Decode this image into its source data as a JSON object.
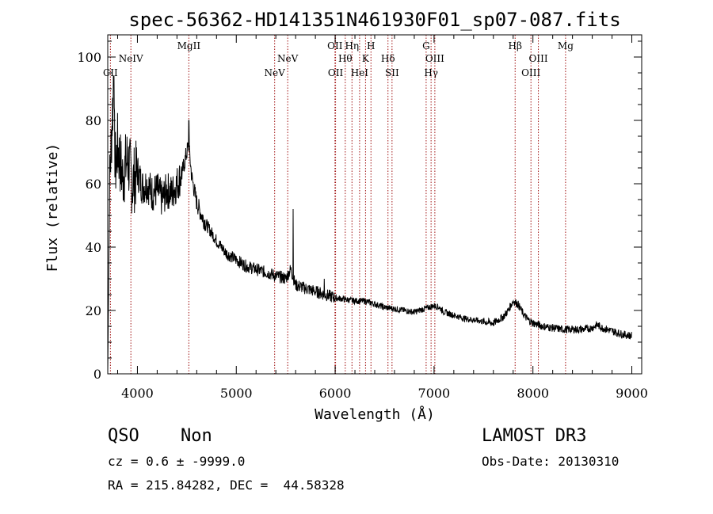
{
  "chart_data": {
    "type": "line",
    "title": "spec-56362-HD141351N461930F01_sp07-087.fits",
    "xlabel": "Wavelength (Å)",
    "ylabel": "Flux (relative)",
    "xlim": [
      3700,
      9100
    ],
    "ylim": [
      0,
      107
    ],
    "x_ticks": [
      4000,
      5000,
      6000,
      7000,
      8000,
      9000
    ],
    "y_ticks": [
      0,
      20,
      40,
      60,
      80,
      100
    ],
    "grid": false,
    "series": [
      {
        "name": "Flux",
        "x": [
          3700,
          3720,
          3750,
          3780,
          3800,
          3850,
          3900,
          3950,
          4000,
          4050,
          4100,
          4150,
          4200,
          4250,
          4300,
          4350,
          4400,
          4450,
          4500,
          4520,
          4550,
          4600,
          4650,
          4700,
          4800,
          4900,
          5000,
          5100,
          5200,
          5300,
          5400,
          5500,
          5550,
          5600,
          5700,
          5800,
          5900,
          6000,
          6100,
          6200,
          6300,
          6400,
          6500,
          6600,
          6700,
          6800,
          6900,
          7000,
          7050,
          7100,
          7200,
          7300,
          7400,
          7500,
          7600,
          7700,
          7750,
          7800,
          7850,
          7900,
          7950,
          8000,
          8100,
          8200,
          8300,
          8400,
          8500,
          8600,
          8650,
          8700,
          8800,
          8900,
          9000
        ],
        "y": [
          0,
          60,
          85,
          65,
          72,
          62,
          68,
          60,
          64,
          59,
          60,
          57,
          58,
          55,
          58,
          57,
          60,
          63,
          70,
          72,
          62,
          54,
          50,
          47,
          42,
          38,
          36,
          34,
          33,
          32,
          31,
          30,
          33,
          28,
          27,
          26,
          25,
          24,
          23.5,
          23,
          23,
          22,
          21,
          20.5,
          20,
          19.5,
          20.5,
          21.5,
          21,
          19.5,
          18.5,
          17.5,
          17,
          16.5,
          16,
          18,
          20,
          23,
          22,
          19,
          17,
          16,
          15,
          14.5,
          14,
          14,
          14,
          14.5,
          15.5,
          14.5,
          13.5,
          12.5,
          12
        ]
      }
    ],
    "lines": [
      {
        "label": "CII",
        "x": 3727,
        "row": 3
      },
      {
        "label": "NeIV",
        "x": 3934,
        "row": 2
      },
      {
        "label": "MgII",
        "x": 4520,
        "row": 1
      },
      {
        "label": "NeV",
        "x": 5388,
        "row": 3
      },
      {
        "label": "NeV",
        "x": 5520,
        "row": 2
      },
      {
        "label": "OII",
        "x": 5998,
        "row": 1
      },
      {
        "label": "OII",
        "x": 6004,
        "row": 3
      },
      {
        "label": "Hθ",
        "x": 6102,
        "row": 2
      },
      {
        "label": "Hη",
        "x": 6170,
        "row": 1
      },
      {
        "label": "HeI",
        "x": 6247,
        "row": 3
      },
      {
        "label": "K",
        "x": 6307,
        "row": 2
      },
      {
        "label": "H",
        "x": 6362,
        "row": 1
      },
      {
        "label": "Hδ",
        "x": 6534,
        "row": 2
      },
      {
        "label": "SII",
        "x": 6575,
        "row": 3
      },
      {
        "label": "G",
        "x": 6920,
        "row": 1
      },
      {
        "label": "Hγ",
        "x": 6970,
        "row": 3
      },
      {
        "label": "OIII",
        "x": 7008,
        "row": 2
      },
      {
        "label": "Hβ",
        "x": 7820,
        "row": 1
      },
      {
        "label": "OIII",
        "x": 7980,
        "row": 3
      },
      {
        "label": "OIII",
        "x": 8055,
        "row": 2
      },
      {
        "label": "Mg",
        "x": 8330,
        "row": 1
      }
    ]
  },
  "info": {
    "class": "QSO",
    "subclass": "Non",
    "survey": "LAMOST DR3",
    "cz": "cz = 0.6 ± -9999.0",
    "obs_date": "Obs-Date: 20130310",
    "coords": "RA = 215.84282, DEC =  44.58328"
  }
}
